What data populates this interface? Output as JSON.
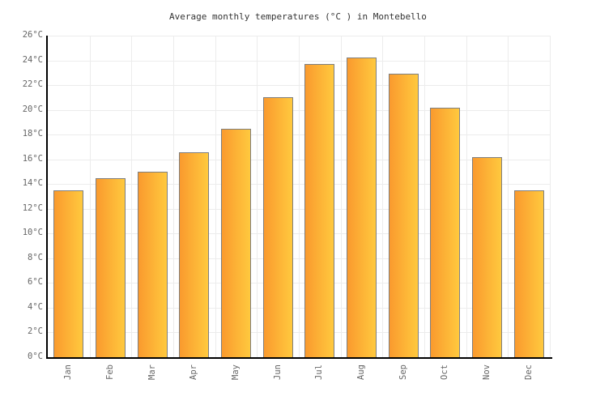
{
  "chart_data": {
    "type": "bar",
    "title": "Average monthly temperatures (°C ) in Montebello",
    "categories": [
      "Jan",
      "Feb",
      "Mar",
      "Apr",
      "May",
      "Jun",
      "Jul",
      "Aug",
      "Sep",
      "Oct",
      "Nov",
      "Dec"
    ],
    "values": [
      13.5,
      14.5,
      15,
      16.6,
      18.5,
      21,
      23.7,
      24.2,
      22.9,
      20.2,
      16.2,
      13.5
    ],
    "unit": "°C",
    "ylim": [
      0,
      26
    ],
    "ytick_step": 2,
    "ytick_labels": [
      "0°C",
      "2°C",
      "4°C",
      "6°C",
      "8°C",
      "10°C",
      "12°C",
      "14°C",
      "16°C",
      "18°C",
      "20°C",
      "22°C",
      "24°C",
      "26°C"
    ],
    "xlabel": "",
    "ylabel": "",
    "grid": true,
    "legend_position": "none",
    "colors": {
      "bar_gradient_left": "#FA9A2E",
      "bar_gradient_right": "#FFC93E",
      "bar_border": "#7f7f7f",
      "gridline": "#ececec",
      "axis": "#000000",
      "tick_label": "#666666",
      "title": "#333333",
      "background": "#ffffff"
    }
  }
}
